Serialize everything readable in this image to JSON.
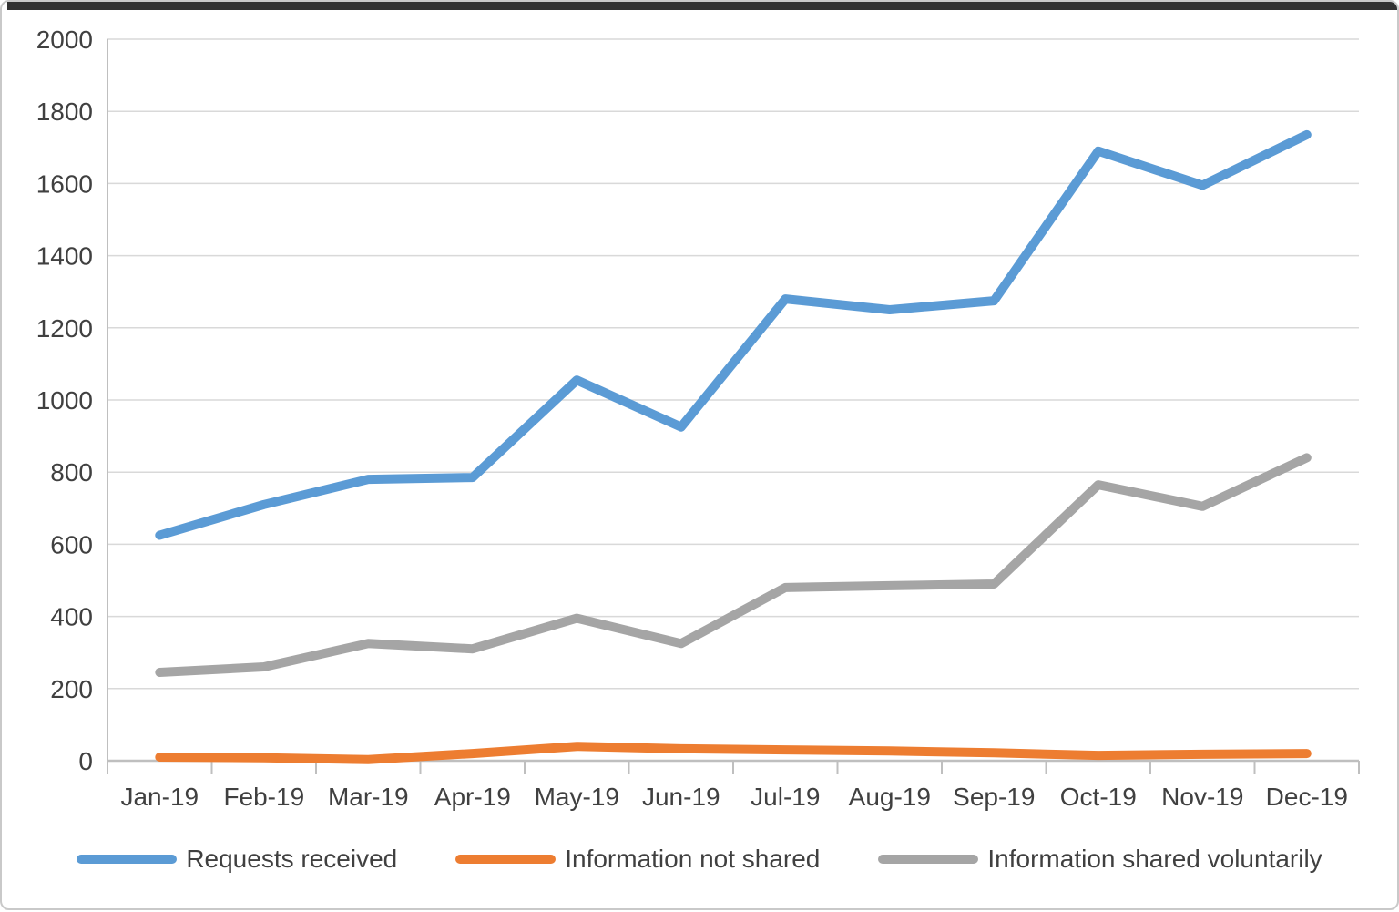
{
  "chart_data": {
    "type": "line",
    "title": "",
    "categories": [
      "Jan-19",
      "Feb-19",
      "Mar-19",
      "Apr-19",
      "May-19",
      "Jun-19",
      "Jul-19",
      "Aug-19",
      "Sep-19",
      "Oct-19",
      "Nov-19",
      "Dec-19"
    ],
    "series": [
      {
        "name": "Requests received",
        "color": "#5B9BD5",
        "values": [
          625,
          710,
          780,
          785,
          1055,
          925,
          1280,
          1250,
          1275,
          1690,
          1595,
          1735
        ]
      },
      {
        "name": "Information not shared",
        "color": "#ED7D31",
        "values": [
          10,
          8,
          3,
          20,
          40,
          33,
          30,
          27,
          22,
          15,
          18,
          20
        ]
      },
      {
        "name": "Information shared voluntarily",
        "color": "#A5A5A5",
        "values": [
          245,
          260,
          325,
          310,
          395,
          325,
          480,
          485,
          490,
          765,
          705,
          840
        ]
      }
    ],
    "xlabel": "",
    "ylabel": "",
    "ylim": [
      0,
      2000
    ],
    "yticks": [
      0,
      200,
      400,
      600,
      800,
      1000,
      1200,
      1400,
      1600,
      1800,
      2000
    ],
    "grid": true,
    "legend_position": "bottom",
    "line_width": 10
  },
  "style_colors": {
    "gridline": "#D9D9D9",
    "axis_line": "#BFBFBF",
    "tick_text": "#404040"
  }
}
